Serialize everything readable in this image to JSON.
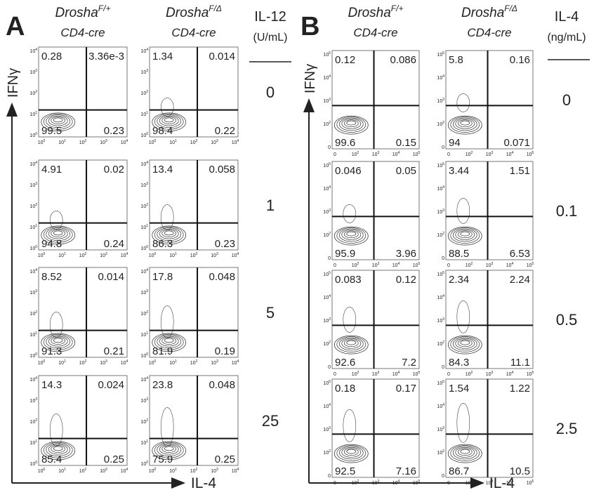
{
  "panels": [
    {
      "letter": "A",
      "columns": [
        {
          "gene": "Drosha",
          "genotype": "F/+",
          "driver": "CD4-cre"
        },
        {
          "gene": "Drosha",
          "genotype": "F/Δ",
          "driver": "CD4-cre"
        }
      ],
      "condition_label": "IL-12",
      "condition_unit": "(U/mL)",
      "y_axis": "IFNγ",
      "x_axis": "IL-4",
      "x_ticks": [
        {
          "base": "10",
          "exp": "0"
        },
        {
          "base": "10",
          "exp": "1"
        },
        {
          "base": "10",
          "exp": "2"
        },
        {
          "base": "10",
          "exp": "3"
        },
        {
          "base": "10",
          "exp": "4"
        }
      ],
      "y_ticks": [
        {
          "base": "10",
          "exp": "0"
        },
        {
          "base": "10",
          "exp": "1"
        },
        {
          "base": "10",
          "exp": "2"
        },
        {
          "base": "10",
          "exp": "3"
        },
        {
          "base": "10",
          "exp": "4"
        }
      ],
      "rows": [
        {
          "condition": "0",
          "plots": [
            {
              "ul": "0.28",
              "ur": "3.36e-3",
              "ll": "99.5",
              "lr": "0.23"
            },
            {
              "ul": "1.34",
              "ur": "0.014",
              "ll": "98.4",
              "lr": "0.22"
            }
          ]
        },
        {
          "condition": "1",
          "plots": [
            {
              "ul": "4.91",
              "ur": "0.02",
              "ll": "94.8",
              "lr": "0.24"
            },
            {
              "ul": "13.4",
              "ur": "0.058",
              "ll": "86.3",
              "lr": "0.23"
            }
          ]
        },
        {
          "condition": "5",
          "plots": [
            {
              "ul": "8.52",
              "ur": "0.014",
              "ll": "91.3",
              "lr": "0.21"
            },
            {
              "ul": "17.8",
              "ur": "0.048",
              "ll": "81.9",
              "lr": "0.19"
            }
          ]
        },
        {
          "condition": "25",
          "plots": [
            {
              "ul": "14.3",
              "ur": "0.024",
              "ll": "85.4",
              "lr": "0.25"
            },
            {
              "ul": "23.8",
              "ur": "0.048",
              "ll": "75.9",
              "lr": "0.25"
            }
          ]
        }
      ]
    },
    {
      "letter": "B",
      "columns": [
        {
          "gene": "Drosha",
          "genotype": "F/+",
          "driver": "CD4-cre"
        },
        {
          "gene": "Drosha",
          "genotype": "F/Δ",
          "driver": "CD4-cre"
        }
      ],
      "condition_label": "IL-4",
      "condition_unit": "(ng/mL)",
      "y_axis": "IFNγ",
      "x_axis": "IL-4",
      "x_ticks": [
        {
          "base": "0"
        },
        {
          "base": "10",
          "exp": "2"
        },
        {
          "base": "10",
          "exp": "3"
        },
        {
          "base": "10",
          "exp": "4"
        },
        {
          "base": "10",
          "exp": "5"
        }
      ],
      "y_ticks": [
        {
          "base": "0"
        },
        {
          "base": "10",
          "exp": "2"
        },
        {
          "base": "10",
          "exp": "3"
        },
        {
          "base": "10",
          "exp": "4"
        },
        {
          "base": "10",
          "exp": "5"
        }
      ],
      "rows": [
        {
          "condition": "0",
          "plots": [
            {
              "ul": "0.12",
              "ur": "0.086",
              "ll": "99.6",
              "lr": "0.15"
            },
            {
              "ul": "5.8",
              "ur": "0.16",
              "ll": "94",
              "lr": "0.071"
            }
          ]
        },
        {
          "condition": "0.1",
          "plots": [
            {
              "ul": "0.046",
              "ur": "0.05",
              "ll": "95.9",
              "lr": "3.96"
            },
            {
              "ul": "3.44",
              "ur": "1.51",
              "ll": "88.5",
              "lr": "6.53"
            }
          ]
        },
        {
          "condition": "0.5",
          "plots": [
            {
              "ul": "0.083",
              "ur": "0.12",
              "ll": "92.6",
              "lr": "7.2"
            },
            {
              "ul": "2.34",
              "ur": "2.24",
              "ll": "84.3",
              "lr": "11.1"
            }
          ]
        },
        {
          "condition": "2.5",
          "plots": [
            {
              "ul": "0.18",
              "ur": "0.17",
              "ll": "92.5",
              "lr": "7.16"
            },
            {
              "ul": "1.54",
              "ur": "1.22",
              "ll": "86.7",
              "lr": "10.5"
            }
          ]
        }
      ]
    }
  ]
}
